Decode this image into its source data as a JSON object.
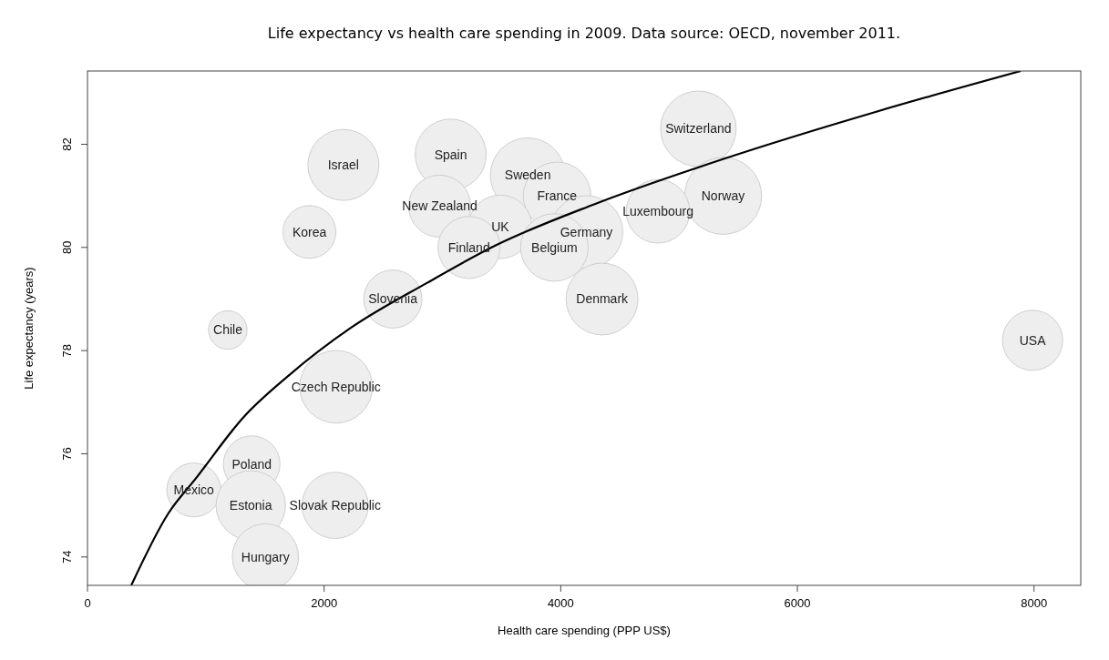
{
  "chart_data": {
    "type": "bubble",
    "title": "Life expectancy vs health care spending in 2009. Data source: OECD, november 2011.",
    "xlabel": "Health care spending (PPP US$)",
    "ylabel": "Life expectancy (years)",
    "xlim": [
      0,
      8395
    ],
    "ylim": [
      73.45,
      83.42
    ],
    "xticks": [
      0,
      2000,
      4000,
      6000,
      8000
    ],
    "yticks": [
      74,
      76,
      78,
      80,
      82
    ],
    "grid": false,
    "series": [
      {
        "color": "#eeeeee",
        "x": [
          5163,
          5372,
          4822,
          3070,
          2163,
          3721,
          3969,
          2977,
          3488,
          4217,
          3946,
          3225,
          1876,
          2581,
          4349,
          1186,
          7988,
          2101,
          1388,
          899,
          1380,
          2093,
          1504
        ],
        "values": [
          82.3,
          81.0,
          80.7,
          81.8,
          81.6,
          81.4,
          81.0,
          80.8,
          80.4,
          80.3,
          80.0,
          80.0,
          80.3,
          79.0,
          79.0,
          78.4,
          78.2,
          77.3,
          75.8,
          75.3,
          75.0,
          75.0,
          74.0
        ],
        "sizes": [
          0.96,
          1,
          0.68,
          0.85,
          0.85,
          0.94,
          0.77,
          0.65,
          0.68,
          0.89,
          0.77,
          0.65,
          0.47,
          0.57,
          0.87,
          0.25,
          0.61,
          0.89,
          0.54,
          0.49,
          0.81,
          0.74,
          0.74
        ]
      },
      {
        "type": "line",
        "color": "#000000",
        "x": [
          370,
          682,
          915,
          1323,
          1702,
          2225,
          2868,
          3450,
          4287,
          5395,
          6680,
          7888
        ],
        "values": [
          73.45,
          74.84,
          75.52,
          76.72,
          77.52,
          78.44,
          79.31,
          80.04,
          80.84,
          81.73,
          82.64,
          83.42
        ]
      }
    ],
    "annotations": [
      {
        "text": "Switzerland",
        "x": 5163,
        "y": 82.3
      },
      {
        "text": "Norway",
        "x": 5372,
        "y": 81.0
      },
      {
        "text": "Luxembourg",
        "x": 4822,
        "y": 80.7
      },
      {
        "text": "Spain",
        "x": 3070,
        "y": 81.8
      },
      {
        "text": "Israel",
        "x": 2163,
        "y": 81.6
      },
      {
        "text": "Sweden",
        "x": 3721,
        "y": 81.4
      },
      {
        "text": "France",
        "x": 3969,
        "y": 81.0
      },
      {
        "text": "New Zealand",
        "x": 2977,
        "y": 80.8
      },
      {
        "text": "UK",
        "x": 3488,
        "y": 80.4
      },
      {
        "text": "Germany",
        "x": 4217,
        "y": 80.3
      },
      {
        "text": "Belgium",
        "x": 3946,
        "y": 80.0
      },
      {
        "text": "Finland",
        "x": 3225,
        "y": 80.0
      },
      {
        "text": "Korea",
        "x": 1876,
        "y": 80.3
      },
      {
        "text": "Slovenia",
        "x": 2581,
        "y": 79.0
      },
      {
        "text": "Denmark",
        "x": 4349,
        "y": 79.0
      },
      {
        "text": "Chile",
        "x": 1186,
        "y": 78.4
      },
      {
        "text": "USA",
        "x": 7988,
        "y": 78.2
      },
      {
        "text": "Czech Republic",
        "x": 2101,
        "y": 77.3
      },
      {
        "text": "Poland",
        "x": 1388,
        "y": 75.8
      },
      {
        "text": "Mexico",
        "x": 899,
        "y": 75.3
      },
      {
        "text": "Estonia",
        "x": 1380,
        "y": 75.0
      },
      {
        "text": "Slovak Republic",
        "x": 2093,
        "y": 75.0
      },
      {
        "text": "Hungary",
        "x": 1504,
        "y": 74.0
      }
    ]
  }
}
